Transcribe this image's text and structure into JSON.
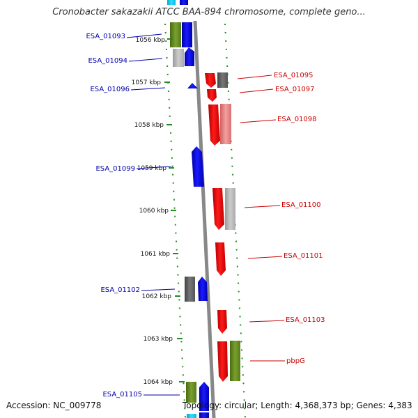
{
  "title": "Cronobacter sakazakii ATCC BAA-894 chromosome, complete geno...",
  "accession": "Accession: NC_009778",
  "summary": "Topology: circular; Length: 4,368,373 bp; Genes: 4,383",
  "ticks": [
    "1056 kbp",
    "1057 kbp",
    "1058 kbp",
    "1059 kbp",
    "1060 kbp",
    "1061 kbp",
    "1062 kbp",
    "1063 kbp",
    "1064 kbp"
  ],
  "genes_left": [
    "ESA_01093",
    "ESA_01094",
    "ESA_01096",
    "ESA_01099",
    "ESA_01102",
    "ESA_01105"
  ],
  "genes_right": [
    "ESA_01095",
    "ESA_01097",
    "ESA_01098",
    "ESA_01100",
    "ESA_01101",
    "ESA_01103",
    "pbpG"
  ],
  "colors": {
    "forward_gene": "#ff0000",
    "reverse_gene": "#0000ff",
    "left_label": "#0000aa",
    "right_label": "#cc0000",
    "tick": "#228b22",
    "backbone": "#888888"
  }
}
